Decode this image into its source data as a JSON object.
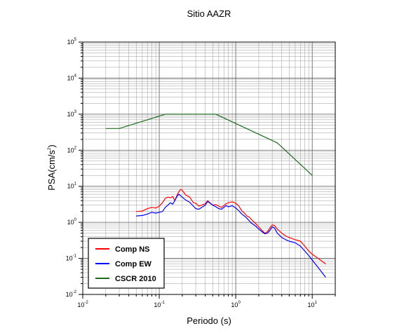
{
  "chart_data": {
    "type": "line",
    "title": "Sitio AAZR",
    "xlabel": "Periodo (s)",
    "ylabel_main": "PSA(cm/s",
    "ylabel_sup": "2",
    "ylabel_close": ")",
    "x_scale": "log",
    "y_scale": "log",
    "xlim": [
      0.01,
      20
    ],
    "ylim": [
      0.01,
      100000
    ],
    "grid": true,
    "legend_position": "bottom-left",
    "x_ticks": [
      {
        "value": 0.01,
        "base": "10",
        "exp": "-2"
      },
      {
        "value": 0.1,
        "base": "10",
        "exp": "-1"
      },
      {
        "value": 1,
        "base": "10",
        "exp": "0"
      },
      {
        "value": 10,
        "base": "10",
        "exp": "1"
      }
    ],
    "y_ticks": [
      {
        "value": 0.01,
        "base": "10",
        "exp": "-2"
      },
      {
        "value": 0.1,
        "base": "10",
        "exp": "-1"
      },
      {
        "value": 1,
        "base": "10",
        "exp": "0"
      },
      {
        "value": 10,
        "base": "10",
        "exp": "1"
      },
      {
        "value": 100,
        "base": "10",
        "exp": "2"
      },
      {
        "value": 1000,
        "base": "10",
        "exp": "3"
      },
      {
        "value": 10000,
        "base": "10",
        "exp": "4"
      },
      {
        "value": 100000,
        "base": "10",
        "exp": "5"
      }
    ],
    "series": [
      {
        "name": "Comp NS",
        "color": "#ff0000",
        "points": [
          [
            0.05,
            2.0
          ],
          [
            0.06,
            2.05
          ],
          [
            0.07,
            2.4
          ],
          [
            0.08,
            2.6
          ],
          [
            0.09,
            2.5
          ],
          [
            0.1,
            2.8
          ],
          [
            0.11,
            3.5
          ],
          [
            0.12,
            4.6
          ],
          [
            0.13,
            5.0
          ],
          [
            0.14,
            4.8
          ],
          [
            0.15,
            5.2
          ],
          [
            0.16,
            4.0
          ],
          [
            0.17,
            5.5
          ],
          [
            0.18,
            7.0
          ],
          [
            0.19,
            8.2
          ],
          [
            0.2,
            7.8
          ],
          [
            0.22,
            5.8
          ],
          [
            0.25,
            5.0
          ],
          [
            0.28,
            3.5
          ],
          [
            0.3,
            3.4
          ],
          [
            0.33,
            2.8
          ],
          [
            0.36,
            3.0
          ],
          [
            0.4,
            3.3
          ],
          [
            0.43,
            4.0
          ],
          [
            0.46,
            3.5
          ],
          [
            0.5,
            3.0
          ],
          [
            0.55,
            3.1
          ],
          [
            0.6,
            2.8
          ],
          [
            0.65,
            2.6
          ],
          [
            0.7,
            2.9
          ],
          [
            0.75,
            3.3
          ],
          [
            0.8,
            3.5
          ],
          [
            0.9,
            3.7
          ],
          [
            1.0,
            3.4
          ],
          [
            1.1,
            2.8
          ],
          [
            1.2,
            2.1
          ],
          [
            1.3,
            1.8
          ],
          [
            1.4,
            1.5
          ],
          [
            1.5,
            1.4
          ],
          [
            1.6,
            1.2
          ],
          [
            1.8,
            0.95
          ],
          [
            2.0,
            0.75
          ],
          [
            2.2,
            0.6
          ],
          [
            2.4,
            0.5
          ],
          [
            2.6,
            0.55
          ],
          [
            2.8,
            0.7
          ],
          [
            3.0,
            0.85
          ],
          [
            3.2,
            0.82
          ],
          [
            3.5,
            0.65
          ],
          [
            4.0,
            0.5
          ],
          [
            4.5,
            0.42
          ],
          [
            5.0,
            0.38
          ],
          [
            6.0,
            0.33
          ],
          [
            7.0,
            0.3
          ],
          [
            8.0,
            0.22
          ],
          [
            9.0,
            0.16
          ],
          [
            10.0,
            0.13
          ],
          [
            12.0,
            0.1
          ],
          [
            15.0,
            0.07
          ]
        ]
      },
      {
        "name": "Comp EW",
        "color": "#0000ff",
        "points": [
          [
            0.05,
            1.5
          ],
          [
            0.06,
            1.55
          ],
          [
            0.07,
            1.7
          ],
          [
            0.08,
            1.9
          ],
          [
            0.09,
            1.8
          ],
          [
            0.1,
            1.9
          ],
          [
            0.11,
            2.0
          ],
          [
            0.12,
            2.6
          ],
          [
            0.13,
            3.0
          ],
          [
            0.14,
            3.5
          ],
          [
            0.15,
            3.2
          ],
          [
            0.16,
            4.0
          ],
          [
            0.17,
            5.2
          ],
          [
            0.18,
            6.0
          ],
          [
            0.19,
            5.5
          ],
          [
            0.2,
            5.0
          ],
          [
            0.22,
            4.2
          ],
          [
            0.25,
            3.6
          ],
          [
            0.28,
            2.8
          ],
          [
            0.3,
            2.4
          ],
          [
            0.33,
            2.3
          ],
          [
            0.36,
            2.6
          ],
          [
            0.4,
            3.0
          ],
          [
            0.43,
            3.8
          ],
          [
            0.46,
            3.4
          ],
          [
            0.5,
            3.0
          ],
          [
            0.55,
            2.7
          ],
          [
            0.6,
            2.4
          ],
          [
            0.65,
            2.3
          ],
          [
            0.7,
            2.6
          ],
          [
            0.75,
            2.9
          ],
          [
            0.8,
            2.7
          ],
          [
            0.9,
            2.9
          ],
          [
            1.0,
            2.5
          ],
          [
            1.1,
            2.1
          ],
          [
            1.2,
            1.7
          ],
          [
            1.3,
            1.5
          ],
          [
            1.4,
            1.3
          ],
          [
            1.5,
            1.1
          ],
          [
            1.6,
            0.95
          ],
          [
            1.8,
            0.8
          ],
          [
            2.0,
            0.65
          ],
          [
            2.2,
            0.55
          ],
          [
            2.4,
            0.48
          ],
          [
            2.6,
            0.5
          ],
          [
            2.8,
            0.6
          ],
          [
            3.0,
            0.75
          ],
          [
            3.2,
            0.7
          ],
          [
            3.5,
            0.5
          ],
          [
            4.0,
            0.38
          ],
          [
            4.5,
            0.33
          ],
          [
            5.0,
            0.3
          ],
          [
            6.0,
            0.27
          ],
          [
            7.0,
            0.22
          ],
          [
            8.0,
            0.16
          ],
          [
            9.0,
            0.12
          ],
          [
            10.0,
            0.09
          ],
          [
            12.0,
            0.055
          ],
          [
            15.0,
            0.03
          ]
        ]
      },
      {
        "name": "CSCR 2010",
        "color": "#1e6b1e",
        "points": [
          [
            0.02,
            400
          ],
          [
            0.03,
            400
          ],
          [
            0.12,
            1000
          ],
          [
            0.55,
            1000
          ],
          [
            3.5,
            160
          ],
          [
            10.0,
            20
          ]
        ]
      }
    ]
  }
}
